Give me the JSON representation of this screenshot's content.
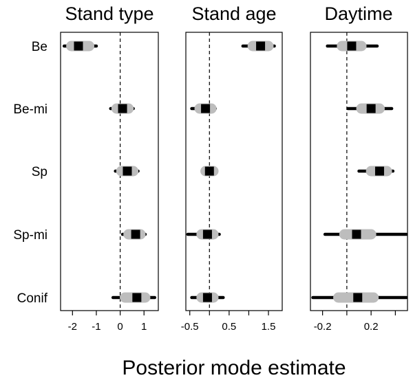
{
  "chart_data": {
    "type": "forest",
    "xlabel": "Posterior mode estimate",
    "categories": [
      "Be",
      "Be-mi",
      "Sp",
      "Sp-mi",
      "Conif"
    ],
    "reference_line": 0,
    "panels": [
      {
        "title": "Stand type",
        "xlim": [
          -2.5,
          1.6
        ],
        "xticks": [
          -2,
          -1,
          0,
          1
        ],
        "xtick_labels": [
          "-2",
          "-1",
          "0",
          "1"
        ],
        "estimates": [
          {
            "category": "Be",
            "mode": -1.75,
            "ci50": [
              -2.05,
              -1.3
            ],
            "ci95": [
              -2.35,
              -1.0
            ]
          },
          {
            "category": "Be-mi",
            "mode": 0.1,
            "ci50": [
              -0.15,
              0.35
            ],
            "ci95": [
              -0.4,
              0.55
            ]
          },
          {
            "category": "Sp",
            "mode": 0.3,
            "ci50": [
              0.05,
              0.55
            ],
            "ci95": [
              -0.2,
              0.75
            ]
          },
          {
            "category": "Sp-mi",
            "mode": 0.65,
            "ci50": [
              0.35,
              0.85
            ],
            "ci95": [
              0.1,
              1.05
            ]
          },
          {
            "category": "Conif",
            "mode": 0.7,
            "ci50": [
              0.2,
              1.05
            ],
            "ci95": [
              -0.3,
              1.45
            ]
          }
        ]
      },
      {
        "title": "Stand age",
        "xlim": [
          -0.6,
          1.85
        ],
        "xticks": [
          -0.5,
          0,
          0.5,
          1,
          1.5
        ],
        "xtick_labels": [
          "-0.5",
          "",
          "0.5",
          "",
          "1.5"
        ],
        "estimates": [
          {
            "category": "Be",
            "mode": 1.3,
            "ci50": [
              1.1,
              1.5
            ],
            "ci95": [
              0.85,
              1.65
            ]
          },
          {
            "category": "Be-mi",
            "mode": -0.1,
            "ci50": [
              -0.25,
              0.05
            ],
            "ci95": [
              -0.45,
              0.15
            ]
          },
          {
            "category": "Sp",
            "mode": 0.0,
            "ci50": [
              -0.1,
              0.1
            ],
            "ci95": [
              -0.15,
              0.15
            ]
          },
          {
            "category": "Sp-mi",
            "mode": -0.05,
            "ci50": [
              -0.2,
              0.1
            ],
            "ci95": [
              -0.55,
              0.25
            ]
          },
          {
            "category": "Conif",
            "mode": -0.05,
            "ci50": [
              -0.2,
              0.1
            ],
            "ci95": [
              -0.45,
              0.35
            ]
          }
        ]
      },
      {
        "title": "Daytime",
        "xlim": [
          -0.3,
          0.5
        ],
        "xticks": [
          -0.2,
          0,
          0.2,
          0.4
        ],
        "xtick_labels": [
          "-0.2",
          "",
          "0.2",
          ""
        ],
        "estimates": [
          {
            "category": "Be",
            "mode": 0.04,
            "ci50": [
              -0.04,
              0.12
            ],
            "ci95": [
              -0.16,
              0.25
            ]
          },
          {
            "category": "Be-mi",
            "mode": 0.2,
            "ci50": [
              0.12,
              0.27
            ],
            "ci95": [
              0.01,
              0.37
            ]
          },
          {
            "category": "Sp",
            "mode": 0.27,
            "ci50": [
              0.2,
              0.33
            ],
            "ci95": [
              0.1,
              0.38
            ]
          },
          {
            "category": "Sp-mi",
            "mode": 0.08,
            "ci50": [
              -0.02,
              0.2
            ],
            "ci95": [
              -0.18,
              0.49
            ]
          },
          {
            "category": "Conif",
            "mode": 0.09,
            "ci50": [
              -0.07,
              0.22
            ],
            "ci95": [
              -0.28,
              0.49
            ]
          }
        ]
      }
    ]
  }
}
